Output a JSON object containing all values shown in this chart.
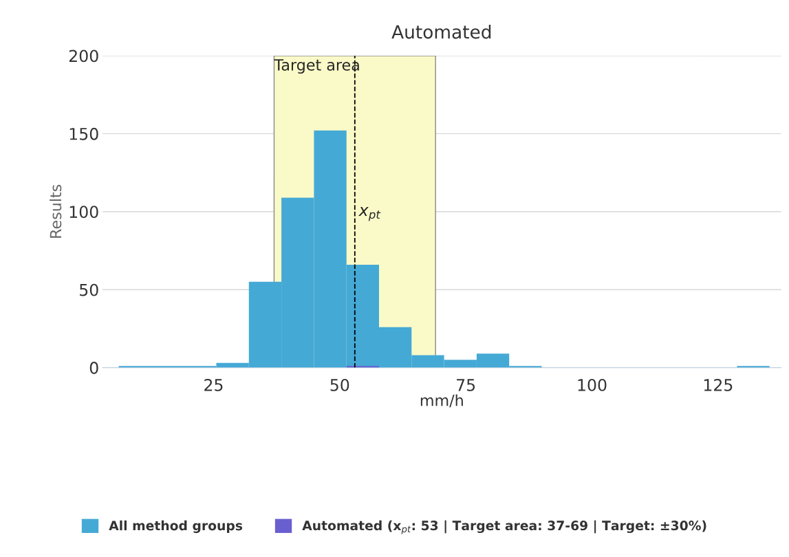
{
  "chart_data": {
    "type": "histogram",
    "title": "Automated",
    "xlabel": "mm/h",
    "ylabel": "Results",
    "bins": [
      6.2,
      12.65,
      19.1,
      25.55,
      32,
      38.45,
      44.9,
      51.35,
      57.8,
      64.25,
      70.7,
      77.15,
      83.6,
      90.05,
      96.5,
      102.95,
      109.4,
      115.85,
      122.3,
      128.75,
      135.2
    ],
    "series": [
      {
        "name": "All method groups",
        "color": "#45a9d5",
        "values": [
          1,
          1,
          1,
          3,
          55,
          109,
          152,
          66,
          26,
          8,
          5,
          9,
          1,
          0,
          0,
          0,
          0,
          0,
          0,
          1
        ]
      },
      {
        "name": "Automated (x$_{pt}$: 53 | Target area: 37-69 | Target: ±30%)",
        "color": "#6a5fcf",
        "values": [
          0,
          0,
          0,
          0,
          0,
          0,
          0,
          1,
          0,
          0,
          0,
          0,
          0,
          0,
          0,
          0,
          0,
          0,
          0,
          0
        ]
      }
    ],
    "bands": [
      {
        "axis": "x",
        "from": 37,
        "to": 69,
        "label": "Target area",
        "color": "#fafac8"
      }
    ],
    "ref_lines": [
      {
        "axis": "x",
        "value": 53,
        "label": "x$_{pt}$",
        "color": "#000000",
        "line_style": "dashed"
      }
    ],
    "xlim": [
      3,
      137.5
    ],
    "xticks": [
      25,
      50,
      75,
      100,
      125
    ],
    "ylim": [
      0,
      200
    ],
    "yticks": [
      0,
      50,
      100,
      150,
      200
    ],
    "grid": "y",
    "legend": "bottom"
  }
}
